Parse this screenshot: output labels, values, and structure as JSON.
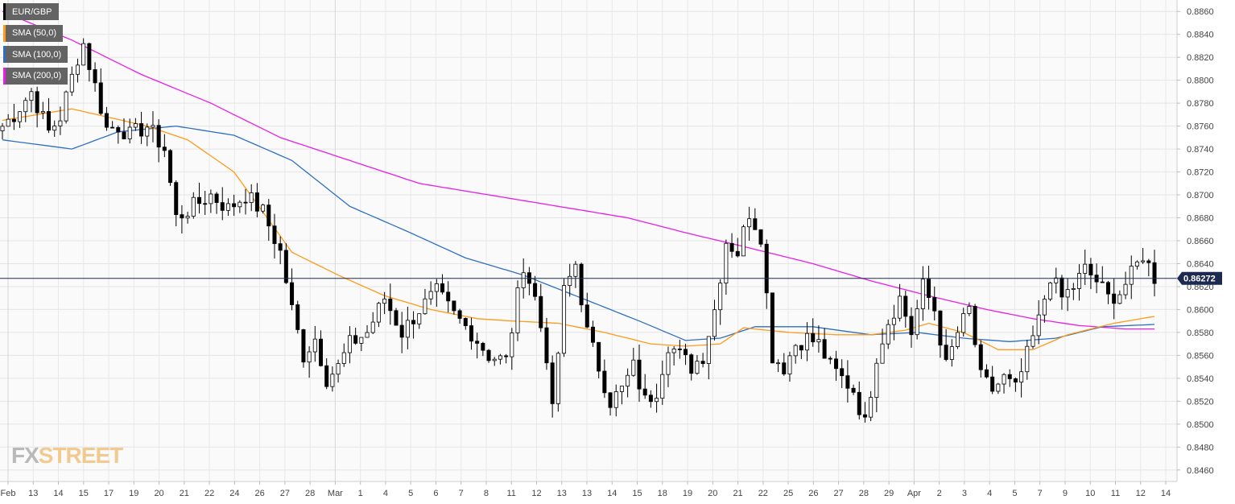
{
  "legend": [
    {
      "label": "EUR/GBP",
      "color": "#000000"
    },
    {
      "label": "SMA (50,0)",
      "color": "#ff9a1a"
    },
    {
      "label": "SMA (100,0)",
      "color": "#2e6fc0"
    },
    {
      "label": "SMA (200,0)",
      "color": "#e81ee8"
    }
  ],
  "logo": {
    "part1": "FX",
    "part2": "STREET"
  },
  "chart_data": {
    "type": "candlestick",
    "pair": "EUR/GBP",
    "ylim": [
      0.845,
      0.887
    ],
    "y_ticks": [
      "0.8860",
      "0.8840",
      "0.8820",
      "0.8800",
      "0.8780",
      "0.8760",
      "0.8740",
      "0.8720",
      "0.8700",
      "0.8680",
      "0.8660",
      "0.8640",
      "0.8620",
      "0.8600",
      "0.8580",
      "0.8560",
      "0.8540",
      "0.8520",
      "0.8500",
      "0.8480",
      "0.8460"
    ],
    "x_ticks": [
      "Feb",
      "13",
      "14",
      "15",
      "17",
      "19",
      "20",
      "21",
      "22",
      "24",
      "26",
      "27",
      "28",
      "Mar",
      "1",
      "4",
      "5",
      "6",
      "7",
      "8",
      "11",
      "12",
      "13",
      "13",
      "14",
      "15",
      "18",
      "19",
      "20",
      "21",
      "22",
      "25",
      "26",
      "27",
      "28",
      "29",
      "Apr",
      "2",
      "3",
      "4",
      "5",
      "7",
      "9",
      "10",
      "11",
      "12",
      "14"
    ],
    "grid": true,
    "current_price": "0.86272",
    "current_price_value": 0.86272,
    "close_path": [
      [
        0,
        0.876
      ],
      [
        2,
        0.877
      ],
      [
        5,
        0.879
      ],
      [
        8,
        0.8755
      ],
      [
        10,
        0.8768
      ],
      [
        13,
        0.882
      ],
      [
        14,
        0.8832
      ],
      [
        16,
        0.8795
      ],
      [
        18,
        0.8758
      ],
      [
        20,
        0.876
      ],
      [
        22,
        0.8752
      ],
      [
        25,
        0.876
      ],
      [
        28,
        0.874
      ],
      [
        30,
        0.868
      ],
      [
        33,
        0.869
      ],
      [
        36,
        0.87
      ],
      [
        39,
        0.8688
      ],
      [
        42,
        0.87
      ],
      [
        45,
        0.8685
      ],
      [
        48,
        0.865
      ],
      [
        50,
        0.86
      ],
      [
        52,
        0.856
      ],
      [
        54,
        0.8575
      ],
      [
        56,
        0.854
      ],
      [
        58,
        0.855
      ],
      [
        60,
        0.857
      ],
      [
        63,
        0.858
      ],
      [
        66,
        0.861
      ],
      [
        69,
        0.858
      ],
      [
        72,
        0.86
      ],
      [
        75,
        0.8615
      ],
      [
        78,
        0.8595
      ],
      [
        81,
        0.858
      ],
      [
        84,
        0.856
      ],
      [
        87,
        0.8555
      ],
      [
        90,
        0.864
      ],
      [
        92,
        0.861
      ],
      [
        94,
        0.856
      ],
      [
        95,
        0.851
      ],
      [
        97,
        0.8615
      ],
      [
        99,
        0.864
      ],
      [
        101,
        0.858
      ],
      [
        103,
        0.855
      ],
      [
        105,
        0.852
      ],
      [
        107,
        0.853
      ],
      [
        109,
        0.855
      ],
      [
        111,
        0.852
      ],
      [
        113,
        0.853
      ],
      [
        115,
        0.857
      ],
      [
        117,
        0.856
      ],
      [
        119,
        0.855
      ],
      [
        121,
        0.856
      ],
      [
        123,
        0.86
      ],
      [
        125,
        0.866
      ],
      [
        127,
        0.865
      ],
      [
        129,
        0.8685
      ],
      [
        131,
        0.8665
      ],
      [
        133,
        0.856
      ],
      [
        135,
        0.855
      ],
      [
        137,
        0.857
      ],
      [
        139,
        0.8575
      ],
      [
        141,
        0.857
      ],
      [
        143,
        0.855
      ],
      [
        145,
        0.854
      ],
      [
        147,
        0.853
      ],
      [
        149,
        0.85
      ],
      [
        151,
        0.856
      ],
      [
        153,
        0.859
      ],
      [
        155,
        0.861
      ],
      [
        157,
        0.858
      ],
      [
        159,
        0.862
      ],
      [
        161,
        0.86
      ],
      [
        163,
        0.855
      ],
      [
        165,
        0.858
      ],
      [
        167,
        0.86
      ],
      [
        169,
        0.854
      ],
      [
        171,
        0.853
      ],
      [
        173,
        0.854
      ],
      [
        175,
        0.853
      ],
      [
        177,
        0.856
      ],
      [
        179,
        0.859
      ],
      [
        181,
        0.863
      ],
      [
        183,
        0.861
      ],
      [
        185,
        0.862
      ],
      [
        187,
        0.8635
      ],
      [
        189,
        0.8625
      ],
      [
        191,
        0.861
      ],
      [
        193,
        0.8615
      ],
      [
        195,
        0.863
      ],
      [
        197,
        0.8648
      ],
      [
        199,
        0.8628
      ]
    ],
    "sma_50": [
      [
        0,
        0.8765
      ],
      [
        12,
        0.8775
      ],
      [
        25,
        0.876
      ],
      [
        32,
        0.8748
      ],
      [
        40,
        0.872
      ],
      [
        50,
        0.865
      ],
      [
        58,
        0.863
      ],
      [
        66,
        0.8612
      ],
      [
        74,
        0.86
      ],
      [
        82,
        0.8592
      ],
      [
        88,
        0.859
      ],
      [
        96,
        0.8588
      ],
      [
        104,
        0.858
      ],
      [
        112,
        0.857
      ],
      [
        118,
        0.8568
      ],
      [
        124,
        0.857
      ],
      [
        128,
        0.8584
      ],
      [
        136,
        0.858
      ],
      [
        144,
        0.8578
      ],
      [
        150,
        0.8578
      ],
      [
        156,
        0.8582
      ],
      [
        160,
        0.8588
      ],
      [
        166,
        0.858
      ],
      [
        172,
        0.8565
      ],
      [
        178,
        0.8565
      ],
      [
        184,
        0.8578
      ],
      [
        192,
        0.8588
      ],
      [
        199,
        0.8594
      ]
    ],
    "sma_100": [
      [
        0,
        0.8748
      ],
      [
        12,
        0.874
      ],
      [
        20,
        0.8755
      ],
      [
        30,
        0.876
      ],
      [
        40,
        0.8752
      ],
      [
        50,
        0.873
      ],
      [
        60,
        0.869
      ],
      [
        70,
        0.8668
      ],
      [
        80,
        0.8645
      ],
      [
        90,
        0.863
      ],
      [
        100,
        0.861
      ],
      [
        110,
        0.859
      ],
      [
        118,
        0.8573
      ],
      [
        124,
        0.8575
      ],
      [
        130,
        0.8585
      ],
      [
        140,
        0.8585
      ],
      [
        150,
        0.8578
      ],
      [
        158,
        0.858
      ],
      [
        166,
        0.8575
      ],
      [
        174,
        0.8572
      ],
      [
        182,
        0.8575
      ],
      [
        190,
        0.8585
      ],
      [
        199,
        0.8587
      ]
    ],
    "sma_200": [
      [
        0,
        0.886
      ],
      [
        12,
        0.8835
      ],
      [
        24,
        0.8805
      ],
      [
        36,
        0.878
      ],
      [
        48,
        0.875
      ],
      [
        60,
        0.873
      ],
      [
        72,
        0.871
      ],
      [
        84,
        0.87
      ],
      [
        96,
        0.869
      ],
      [
        108,
        0.868
      ],
      [
        118,
        0.8667
      ],
      [
        128,
        0.8655
      ],
      [
        140,
        0.864
      ],
      [
        150,
        0.8625
      ],
      [
        160,
        0.8612
      ],
      [
        170,
        0.86
      ],
      [
        178,
        0.8592
      ],
      [
        186,
        0.8586
      ],
      [
        194,
        0.8583
      ],
      [
        199,
        0.8583
      ]
    ]
  }
}
